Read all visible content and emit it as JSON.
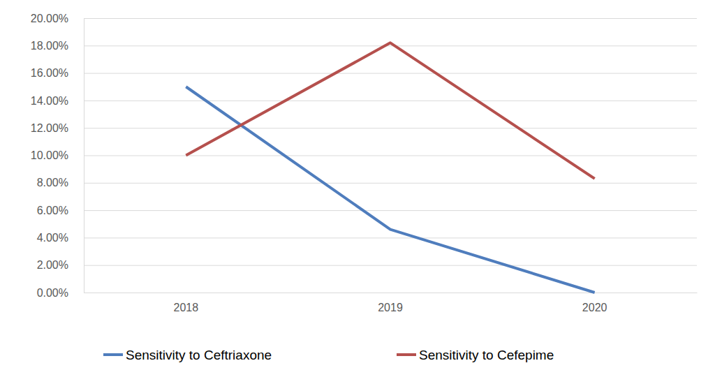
{
  "chart_data": {
    "type": "line",
    "categories": [
      "2018",
      "2019",
      "2020"
    ],
    "series": [
      {
        "name": "Sensitivity to Ceftriaxone",
        "color": "#4f7dbd",
        "values": [
          15.0,
          4.6,
          0.0
        ]
      },
      {
        "name": "Sensitivity to Cefepime",
        "color": "#b5504d",
        "values": [
          10.0,
          18.2,
          8.3
        ]
      }
    ],
    "ylim": [
      0,
      20
    ],
    "yticks": [
      {
        "value": 0,
        "label": "0.00%"
      },
      {
        "value": 2,
        "label": "2.00%"
      },
      {
        "value": 4,
        "label": "4.00%"
      },
      {
        "value": 6,
        "label": "6.00%"
      },
      {
        "value": 8,
        "label": "8.00%"
      },
      {
        "value": 10,
        "label": "10.00%"
      },
      {
        "value": 12,
        "label": "12.00%"
      },
      {
        "value": 14,
        "label": "14.00%"
      },
      {
        "value": 16,
        "label": "16.00%"
      },
      {
        "value": 18,
        "label": "18.00%"
      },
      {
        "value": 20,
        "label": "20.00%"
      }
    ],
    "grid": true,
    "legend": "bottom"
  }
}
